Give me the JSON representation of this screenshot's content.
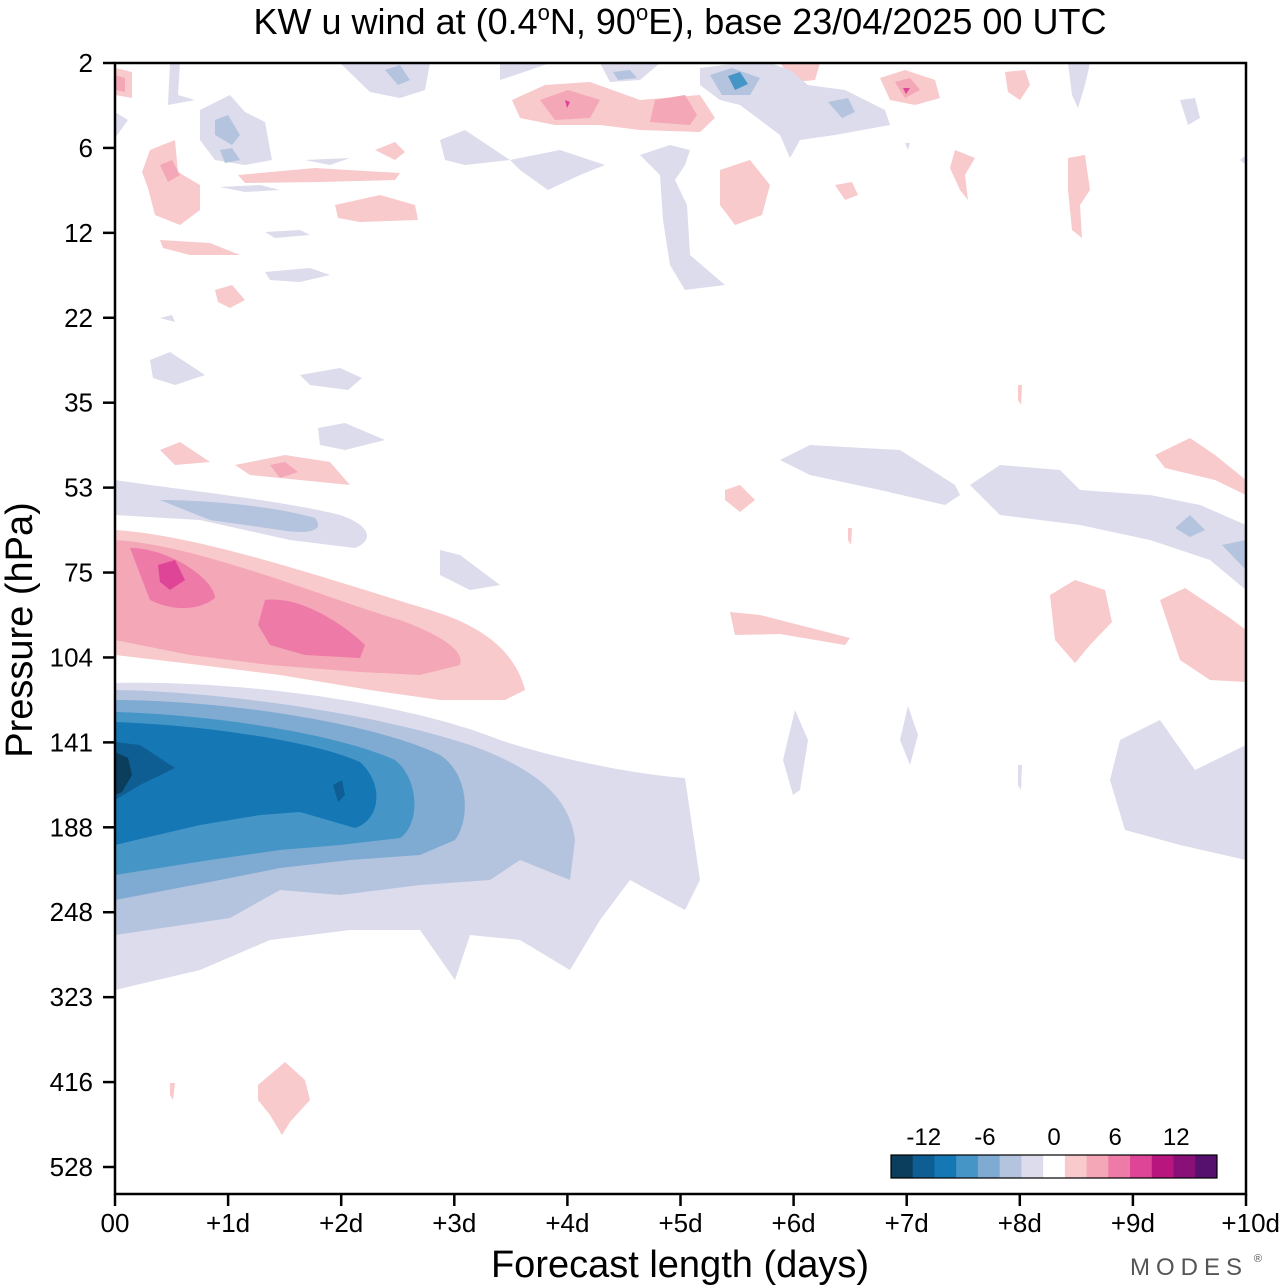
{
  "chart_data": {
    "type": "heatmap",
    "title_prefix": "KW u wind at (0.4",
    "title_deg1": "o",
    "title_mid": "N, 90",
    "title_deg2": "o",
    "title_suffix": "E),  base 23/04/2025  00 UTC",
    "xlabel": "Forecast length (days)",
    "ylabel": "Pressure (hPa)",
    "x_ticks": [
      "00",
      "+1d",
      "+2d",
      "+3d",
      "+4d",
      "+5d",
      "+6d",
      "+7d",
      "+8d",
      "+9d",
      "+10d"
    ],
    "xlim": [
      0,
      10
    ],
    "y_ticks": [
      "2",
      "6",
      "12",
      "22",
      "35",
      "53",
      "75",
      "104",
      "141",
      "188",
      "248",
      "323",
      "416",
      "528"
    ],
    "y_axis_direction": "pressure decreasing upward",
    "grid": false,
    "legend": {
      "placement": "bottom-right",
      "labels": [
        "-12",
        "-6",
        "0",
        "6",
        "12"
      ],
      "label_levels": [
        -12,
        -6,
        0,
        6,
        12
      ],
      "levels": [
        -16,
        -14,
        -12,
        -10,
        -8,
        -6,
        -4,
        -2,
        2,
        4,
        6,
        8,
        10,
        12,
        14,
        16
      ],
      "colors": [
        "#0b3d5c",
        "#0e5e94",
        "#1677b5",
        "#4596c7",
        "#7fabd2",
        "#b4c3de",
        "#dcdcec",
        "#ffffff",
        "#f8cacc",
        "#f4a7b6",
        "#ee7aa8",
        "#de4596",
        "#b9157e",
        "#891077",
        "#55116d"
      ]
    },
    "features": [
      {
        "name": "negative u-wind jet core",
        "x_range": [
          0,
          4.3
        ],
        "pressure_center": 158,
        "peak_value": -14
      },
      {
        "name": "positive u-wind band",
        "x_range": [
          0,
          3.6
        ],
        "pressure_center": 85,
        "peak_value": 9
      },
      {
        "name": "weak easterly band",
        "x_range": [
          0,
          2.2
        ],
        "pressure_center": 60,
        "peak_value": -5
      },
      {
        "name": "stratospheric perturbations",
        "x_range": [
          0,
          10
        ],
        "pressure_range": [
          2,
          22
        ],
        "peak_value": 7
      }
    ]
  },
  "branding": {
    "logo_text": "MODES",
    "logo_mark": "®"
  }
}
